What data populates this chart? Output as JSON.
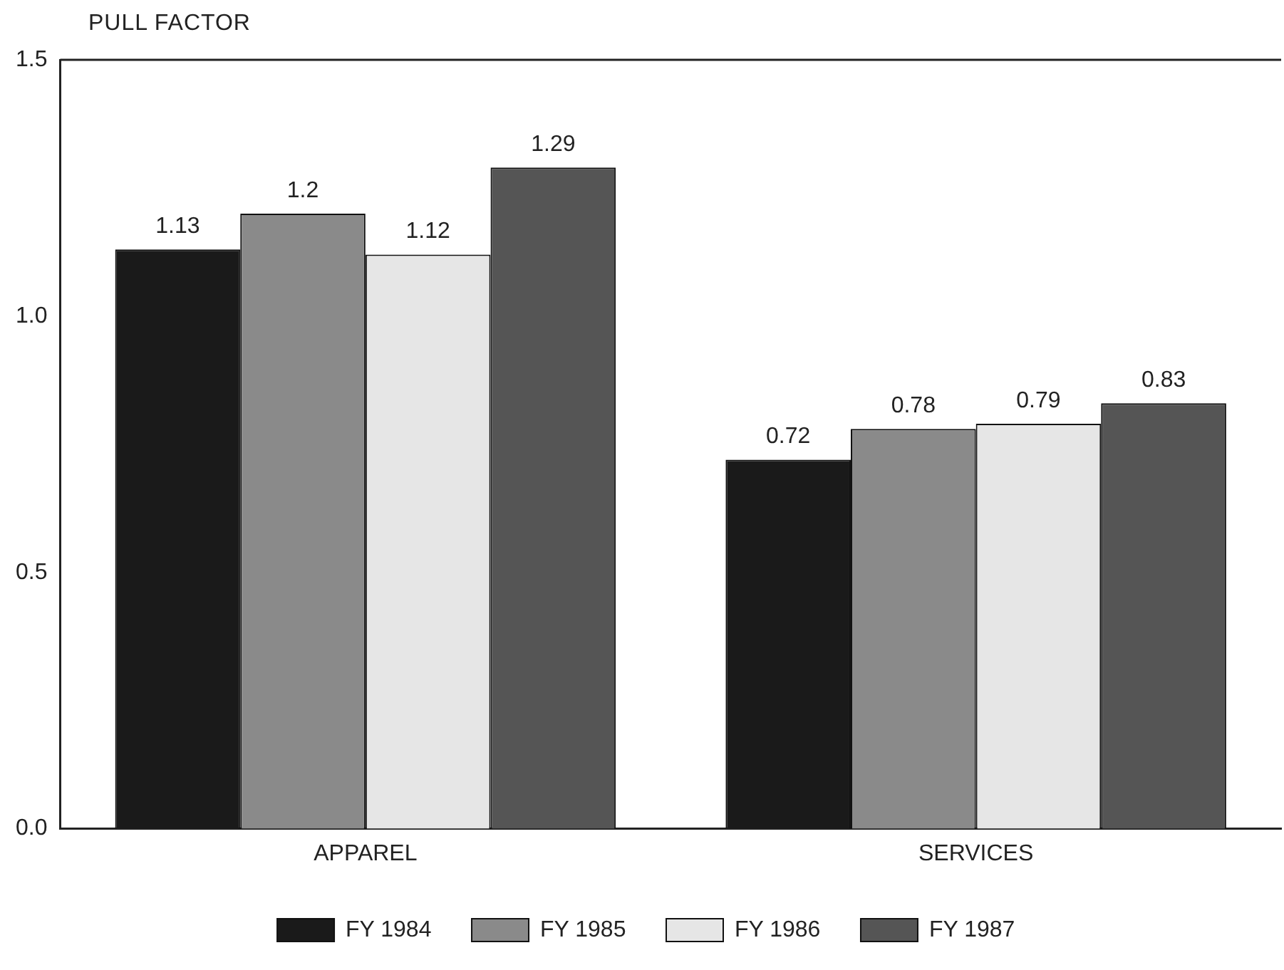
{
  "chart_data": {
    "type": "bar",
    "ylabel": "PULL FACTOR",
    "categories": [
      "APPAREL",
      "SERVICES"
    ],
    "series": [
      {
        "name": "FY 1984",
        "color": "#1a1a1a",
        "values": [
          1.13,
          0.72
        ]
      },
      {
        "name": "FY 1985",
        "color": "#8a8a8a",
        "values": [
          1.2,
          0.78
        ]
      },
      {
        "name": "FY 1986",
        "color": "#e6e6e6",
        "values": [
          1.12,
          0.79
        ]
      },
      {
        "name": "FY 1987",
        "color": "#555555",
        "values": [
          1.29,
          0.83
        ]
      }
    ],
    "ylim": [
      0,
      1.5
    ],
    "yticks": [
      {
        "value": 0,
        "label": "0.0"
      },
      {
        "value": 0.5,
        "label": "0.5"
      },
      {
        "value": 1,
        "label": "1.0"
      },
      {
        "value": 1.5,
        "label": "1.5"
      }
    ],
    "grid": false,
    "legend": "bottom",
    "data_labels": true
  }
}
